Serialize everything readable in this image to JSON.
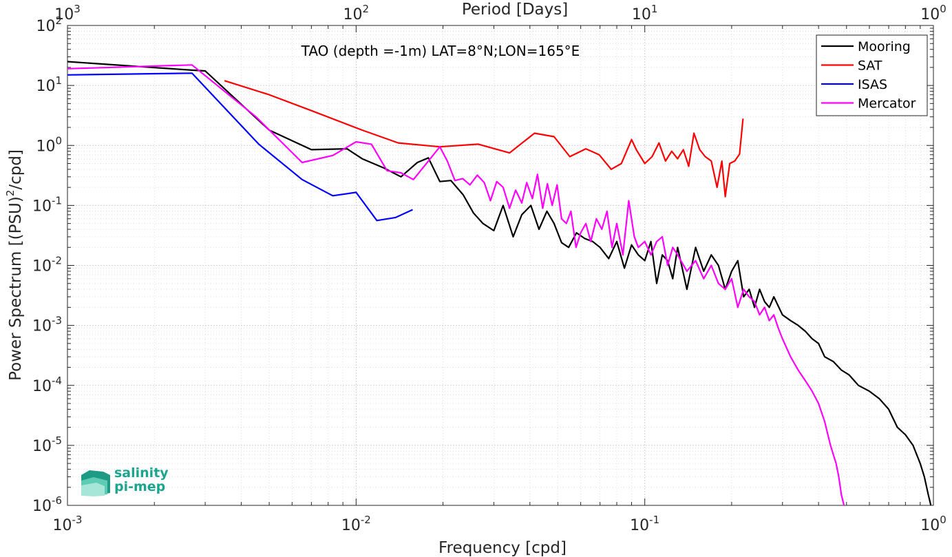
{
  "chart_data": {
    "type": "line",
    "title": "",
    "annotation": "TAO (depth =-1m) LAT=8°N;LON=165°E",
    "xlabel": "Frequency [cpd]",
    "ylabel_main": "Power Spectrum [(PSU)",
    "ylabel_sup": "2",
    "ylabel_tail": "/cpd]",
    "top_xlabel": "Period [Days]",
    "xscale": "log",
    "yscale": "log",
    "xlim": [
      0.001,
      1
    ],
    "ylim": [
      1e-06,
      100
    ],
    "grid": true,
    "legend_position": "top-right",
    "x_ticks": [
      {
        "base": "10",
        "exp": "-3"
      },
      {
        "base": "10",
        "exp": "-2"
      },
      {
        "base": "10",
        "exp": "-1"
      },
      {
        "base": "10",
        "exp": "0"
      }
    ],
    "top_ticks": [
      {
        "base": "10",
        "exp": "3"
      },
      {
        "base": "10",
        "exp": "2"
      },
      {
        "base": "10",
        "exp": "1"
      },
      {
        "base": "10",
        "exp": "0"
      }
    ],
    "y_ticks": [
      {
        "base": "10",
        "exp": "2"
      },
      {
        "base": "10",
        "exp": "1"
      },
      {
        "base": "10",
        "exp": "0"
      },
      {
        "base": "10",
        "exp": "-1"
      },
      {
        "base": "10",
        "exp": "-2"
      },
      {
        "base": "10",
        "exp": "-3"
      },
      {
        "base": "10",
        "exp": "-4"
      },
      {
        "base": "10",
        "exp": "-5"
      },
      {
        "base": "10",
        "exp": "-6"
      }
    ],
    "series": [
      {
        "name": "Mooring",
        "color": "#000000",
        "x": [
          0.001,
          0.0027,
          0.003,
          0.005,
          0.007,
          0.0093,
          0.0105,
          0.0125,
          0.0143,
          0.0163,
          0.0178,
          0.0195,
          0.0213,
          0.0235,
          0.0255,
          0.0275,
          0.03,
          0.0323,
          0.035,
          0.0375,
          0.0403,
          0.043,
          0.0458,
          0.0485,
          0.0515,
          0.0545,
          0.058,
          0.062,
          0.066,
          0.07,
          0.075,
          0.08,
          0.085,
          0.09,
          0.095,
          0.1,
          0.105,
          0.11,
          0.115,
          0.12,
          0.125,
          0.13,
          0.14,
          0.15,
          0.16,
          0.17,
          0.18,
          0.19,
          0.2,
          0.21,
          0.22,
          0.23,
          0.24,
          0.25,
          0.26,
          0.27,
          0.28,
          0.3,
          0.32,
          0.34,
          0.36,
          0.38,
          0.4,
          0.42,
          0.45,
          0.48,
          0.51,
          0.55,
          0.6,
          0.65,
          0.7,
          0.75,
          0.8,
          0.85,
          0.9,
          0.93,
          0.96,
          0.98
        ],
        "y": [
          25,
          18,
          17.5,
          1.8,
          0.85,
          0.88,
          0.6,
          0.42,
          0.3,
          0.52,
          0.62,
          0.25,
          0.26,
          0.15,
          0.075,
          0.05,
          0.038,
          0.1,
          0.03,
          0.07,
          0.1,
          0.04,
          0.08,
          0.05,
          0.024,
          0.02,
          0.035,
          0.028,
          0.025,
          0.02,
          0.013,
          0.025,
          0.009,
          0.022,
          0.015,
          0.012,
          0.025,
          0.005,
          0.015,
          0.012,
          0.006,
          0.02,
          0.004,
          0.02,
          0.008,
          0.015,
          0.01,
          0.004,
          0.008,
          0.012,
          0.003,
          0.004,
          0.002,
          0.004,
          0.0025,
          0.002,
          0.003,
          0.0015,
          0.0012,
          0.001,
          0.0008,
          0.0006,
          0.0005,
          0.0003,
          0.00025,
          0.00018,
          0.00015,
          0.0001,
          8e-05,
          6e-05,
          4e-05,
          2e-05,
          1.5e-05,
          1e-05,
          5e-06,
          3e-06,
          1.5e-06,
          1e-06
        ]
      },
      {
        "name": "SAT",
        "color": "#ff0000",
        "x": [
          0.0035,
          0.005,
          0.007,
          0.0105,
          0.014,
          0.0195,
          0.0265,
          0.034,
          0.0415,
          0.0485,
          0.055,
          0.0625,
          0.0695,
          0.0765,
          0.083,
          0.09,
          0.0935,
          0.1,
          0.106,
          0.112,
          0.118,
          0.124,
          0.13,
          0.136,
          0.142,
          0.148,
          0.155,
          0.162,
          0.17,
          0.178,
          0.185,
          0.19,
          0.197,
          0.205,
          0.213,
          0.219
        ],
        "y": [
          12,
          7,
          3.8,
          1.8,
          1.1,
          0.95,
          1.05,
          0.75,
          1.6,
          1.4,
          0.65,
          0.88,
          0.7,
          0.4,
          0.5,
          1.25,
          0.85,
          0.5,
          0.65,
          1.1,
          0.55,
          0.8,
          0.6,
          0.85,
          0.45,
          1.6,
          0.85,
          0.65,
          0.55,
          0.2,
          0.55,
          0.14,
          0.5,
          0.55,
          0.72,
          2.8
        ]
      },
      {
        "name": "ISAS",
        "color": "#0000ff",
        "x": [
          0.001,
          0.0027,
          0.0046,
          0.0065,
          0.0083,
          0.01,
          0.0118,
          0.0137,
          0.0157
        ],
        "y": [
          15,
          16,
          1.05,
          0.27,
          0.145,
          0.165,
          0.056,
          0.063,
          0.085
        ]
      },
      {
        "name": "Mercator",
        "color": "#ff00ff",
        "x": [
          0.001,
          0.0027,
          0.0045,
          0.0065,
          0.0083,
          0.01,
          0.0113,
          0.0128,
          0.0143,
          0.0158,
          0.0178,
          0.0195,
          0.0207,
          0.022,
          0.0234,
          0.0248,
          0.0263,
          0.0278,
          0.0292,
          0.0307,
          0.0323,
          0.034,
          0.0357,
          0.0375,
          0.039,
          0.0408,
          0.0425,
          0.0443,
          0.046,
          0.0478,
          0.0497,
          0.0515,
          0.0535,
          0.0555,
          0.0578,
          0.06,
          0.0625,
          0.065,
          0.068,
          0.071,
          0.074,
          0.077,
          0.08,
          0.084,
          0.088,
          0.092,
          0.095,
          0.1,
          0.105,
          0.11,
          0.115,
          0.12,
          0.125,
          0.13,
          0.14,
          0.15,
          0.16,
          0.17,
          0.18,
          0.19,
          0.2,
          0.21,
          0.22,
          0.23,
          0.24,
          0.25,
          0.26,
          0.27,
          0.28,
          0.29,
          0.3,
          0.32,
          0.34,
          0.36,
          0.38,
          0.4,
          0.42,
          0.44,
          0.46,
          0.47,
          0.48,
          0.49
        ],
        "y": [
          19,
          22,
          3,
          0.52,
          0.68,
          1.15,
          1.05,
          0.38,
          0.35,
          0.27,
          0.55,
          0.95,
          0.55,
          0.26,
          0.28,
          0.22,
          0.32,
          0.24,
          0.12,
          0.25,
          0.2,
          0.09,
          0.18,
          0.11,
          0.24,
          0.13,
          0.33,
          0.09,
          0.23,
          0.1,
          0.22,
          0.06,
          0.05,
          0.08,
          0.02,
          0.035,
          0.05,
          0.025,
          0.06,
          0.04,
          0.08,
          0.02,
          0.05,
          0.015,
          0.12,
          0.03,
          0.02,
          0.025,
          0.015,
          0.025,
          0.03,
          0.01,
          0.02,
          0.015,
          0.008,
          0.012,
          0.006,
          0.01,
          0.005,
          0.004,
          0.006,
          0.002,
          0.004,
          0.003,
          0.0025,
          0.0015,
          0.002,
          0.0012,
          0.0015,
          0.0009,
          0.0006,
          0.0003,
          0.00018,
          0.00012,
          8e-05,
          5e-05,
          2.5e-05,
          1e-05,
          5e-06,
          3e-06,
          1.5e-06,
          1e-06
        ]
      }
    ]
  },
  "logo": {
    "line1": "salinity",
    "line2": "pi-mep",
    "color": "#1ba58e"
  }
}
